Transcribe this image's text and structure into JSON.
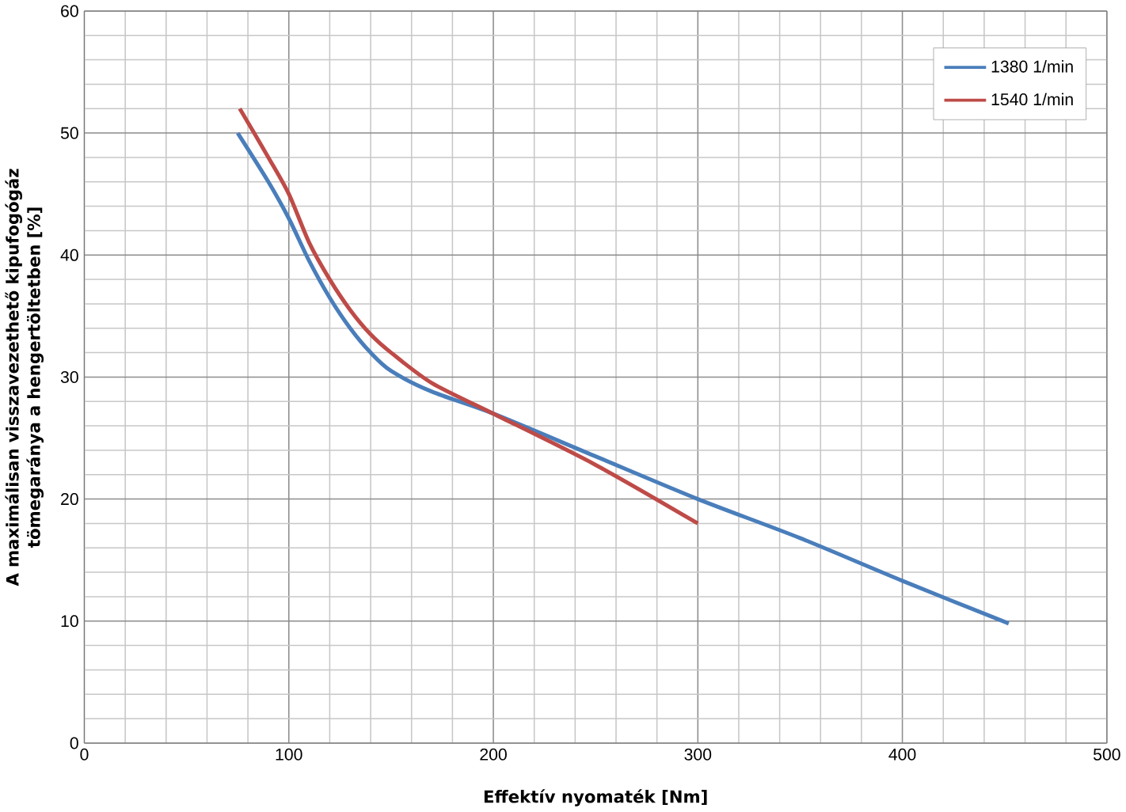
{
  "chart_data": {
    "type": "line",
    "xlabel": "Effektív nyomaték [Nm]",
    "ylabel": "A maximálisan visszavezethető kipufogógáz tömegaránya a hengertöltetben [%]",
    "xlim": [
      0,
      500
    ],
    "xticks": [
      0,
      100,
      200,
      300,
      400,
      500
    ],
    "ylim": [
      0,
      60
    ],
    "yticks": [
      0,
      10,
      20,
      30,
      40,
      50,
      60
    ],
    "grid": true,
    "legend": "top right",
    "line_style": "solid",
    "marker": "none",
    "series": [
      {
        "name": "1380 1/min",
        "color": "#4a7ebb",
        "x": [
          75,
          90,
          100,
          110,
          120,
          130,
          140,
          150,
          170,
          200,
          250,
          300,
          350,
          400,
          452
        ],
        "values": [
          50,
          46,
          43,
          39.5,
          36.5,
          34,
          32,
          30.5,
          28.8,
          27,
          23.5,
          20,
          16.8,
          13.3,
          9.8
        ]
      },
      {
        "name": "1540 1/min",
        "color": "#be4b48",
        "x": [
          76,
          90,
          100,
          110,
          120,
          130,
          140,
          150,
          170,
          200,
          250,
          300
        ],
        "values": [
          52,
          48,
          45,
          41,
          38,
          35.5,
          33.5,
          32,
          29.5,
          27,
          22.8,
          18
        ]
      }
    ]
  }
}
